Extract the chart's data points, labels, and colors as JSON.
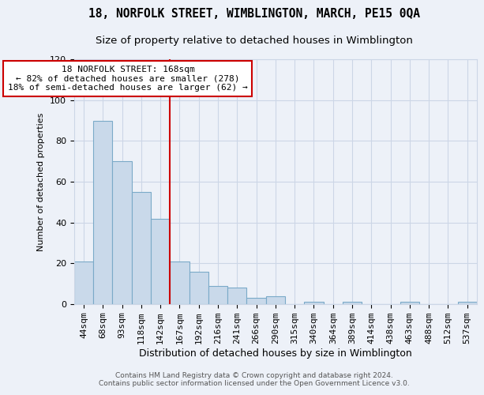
{
  "title1": "18, NORFOLK STREET, WIMBLINGTON, MARCH, PE15 0QA",
  "title2": "Size of property relative to detached houses in Wimblington",
  "xlabel": "Distribution of detached houses by size in Wimblington",
  "ylabel": "Number of detached properties",
  "footer1": "Contains HM Land Registry data © Crown copyright and database right 2024.",
  "footer2": "Contains public sector information licensed under the Open Government Licence v3.0.",
  "categories": [
    "44sqm",
    "68sqm",
    "93sqm",
    "118sqm",
    "142sqm",
    "167sqm",
    "192sqm",
    "216sqm",
    "241sqm",
    "266sqm",
    "290sqm",
    "315sqm",
    "340sqm",
    "364sqm",
    "389sqm",
    "414sqm",
    "438sqm",
    "463sqm",
    "488sqm",
    "512sqm",
    "537sqm"
  ],
  "values": [
    21,
    90,
    70,
    55,
    42,
    21,
    16,
    9,
    8,
    3,
    4,
    0,
    1,
    0,
    1,
    0,
    0,
    1,
    0,
    0,
    1
  ],
  "bar_color": "#c9d9ea",
  "bar_edge_color": "#7baac8",
  "bar_linewidth": 0.8,
  "grid_color": "#ccd6e6",
  "bg_color": "#edf1f8",
  "annotation_text": "18 NORFOLK STREET: 168sqm\n← 82% of detached houses are smaller (278)\n18% of semi-detached houses are larger (62) →",
  "annotation_box_color": "#ffffff",
  "annotation_border_color": "#cc0000",
  "vline_color": "#cc0000",
  "vline_x_index": 5,
  "ylim": [
    0,
    120
  ],
  "yticks": [
    0,
    20,
    40,
    60,
    80,
    100,
    120
  ],
  "title1_fontsize": 10.5,
  "title2_fontsize": 9.5,
  "xlabel_fontsize": 9,
  "ylabel_fontsize": 8,
  "tick_fontsize": 8,
  "annotation_fontsize": 8
}
